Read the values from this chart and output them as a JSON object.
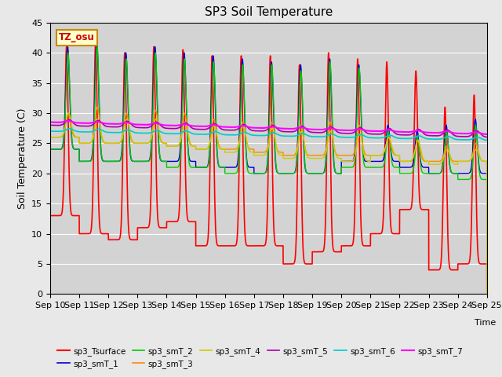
{
  "title": "SP3 Soil Temperature",
  "ylabel": "Soil Temperature (C)",
  "xlabel": "Time",
  "tz_label": "TZ_osu",
  "ylim": [
    0,
    45
  ],
  "background_color": "#e8e8e8",
  "plot_bg_color": "#d3d3d3",
  "series": {
    "sp3_Tsurface": {
      "color": "#ff0000",
      "lw": 1.2
    },
    "sp3_smT_1": {
      "color": "#0000cc",
      "lw": 1.0
    },
    "sp3_smT_2": {
      "color": "#00cc00",
      "lw": 1.0
    },
    "sp3_smT_3": {
      "color": "#ff8800",
      "lw": 1.0
    },
    "sp3_smT_4": {
      "color": "#cccc00",
      "lw": 1.0
    },
    "sp3_smT_5": {
      "color": "#aa00aa",
      "lw": 1.2
    },
    "sp3_smT_6": {
      "color": "#00cccc",
      "lw": 1.2
    },
    "sp3_smT_7": {
      "color": "#ff00ff",
      "lw": 1.5
    }
  },
  "xtick_labels": [
    "Sep 10",
    "Sep 11",
    "Sep 12",
    "Sep 13",
    "Sep 14",
    "Sep 15",
    "Sep 16",
    "Sep 17",
    "Sep 18",
    "Sep 19",
    "Sep 20",
    "Sep 21",
    "Sep 22",
    "Sep 23",
    "Sep 24",
    "Sep 25"
  ],
  "n_days": 15,
  "pts_per_day": 288
}
